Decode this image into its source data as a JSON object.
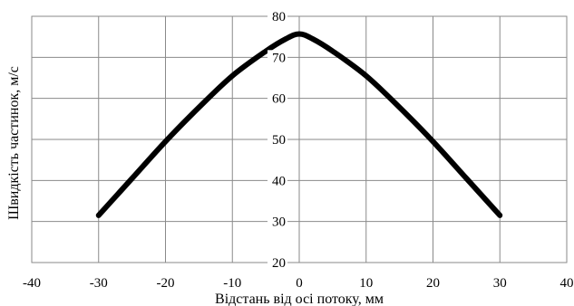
{
  "chart_data": {
    "type": "line",
    "title": "",
    "xlabel": "Відстань від осі потоку, мм",
    "ylabel": "Швидкість частинок, м/с",
    "xlim": [
      -40,
      40
    ],
    "ylim": [
      20,
      80
    ],
    "x_ticks": [
      -40,
      -30,
      -20,
      -10,
      0,
      10,
      20,
      30,
      40
    ],
    "y_ticks": [
      20,
      30,
      40,
      50,
      60,
      70,
      80
    ],
    "x_tick_labels": [
      "-40",
      "-30",
      "-20",
      "-10",
      "0",
      "10",
      "20",
      "30",
      "40"
    ],
    "y_tick_labels": [
      "20",
      "30",
      "40",
      "50",
      "60",
      "70",
      "80"
    ],
    "grid": true,
    "legend": "none",
    "series": [
      {
        "x": [
          -30,
          -25,
          -20,
          -15,
          -10,
          -5,
          -2,
          0,
          2,
          5,
          10,
          15,
          20,
          25,
          30
        ],
        "y": [
          31.5,
          40.5,
          49.5,
          57.8,
          65.5,
          71.5,
          74.5,
          75.7,
          74.5,
          71.5,
          65.5,
          57.8,
          49.5,
          40.5,
          31.5
        ],
        "color": "#000000"
      }
    ]
  }
}
